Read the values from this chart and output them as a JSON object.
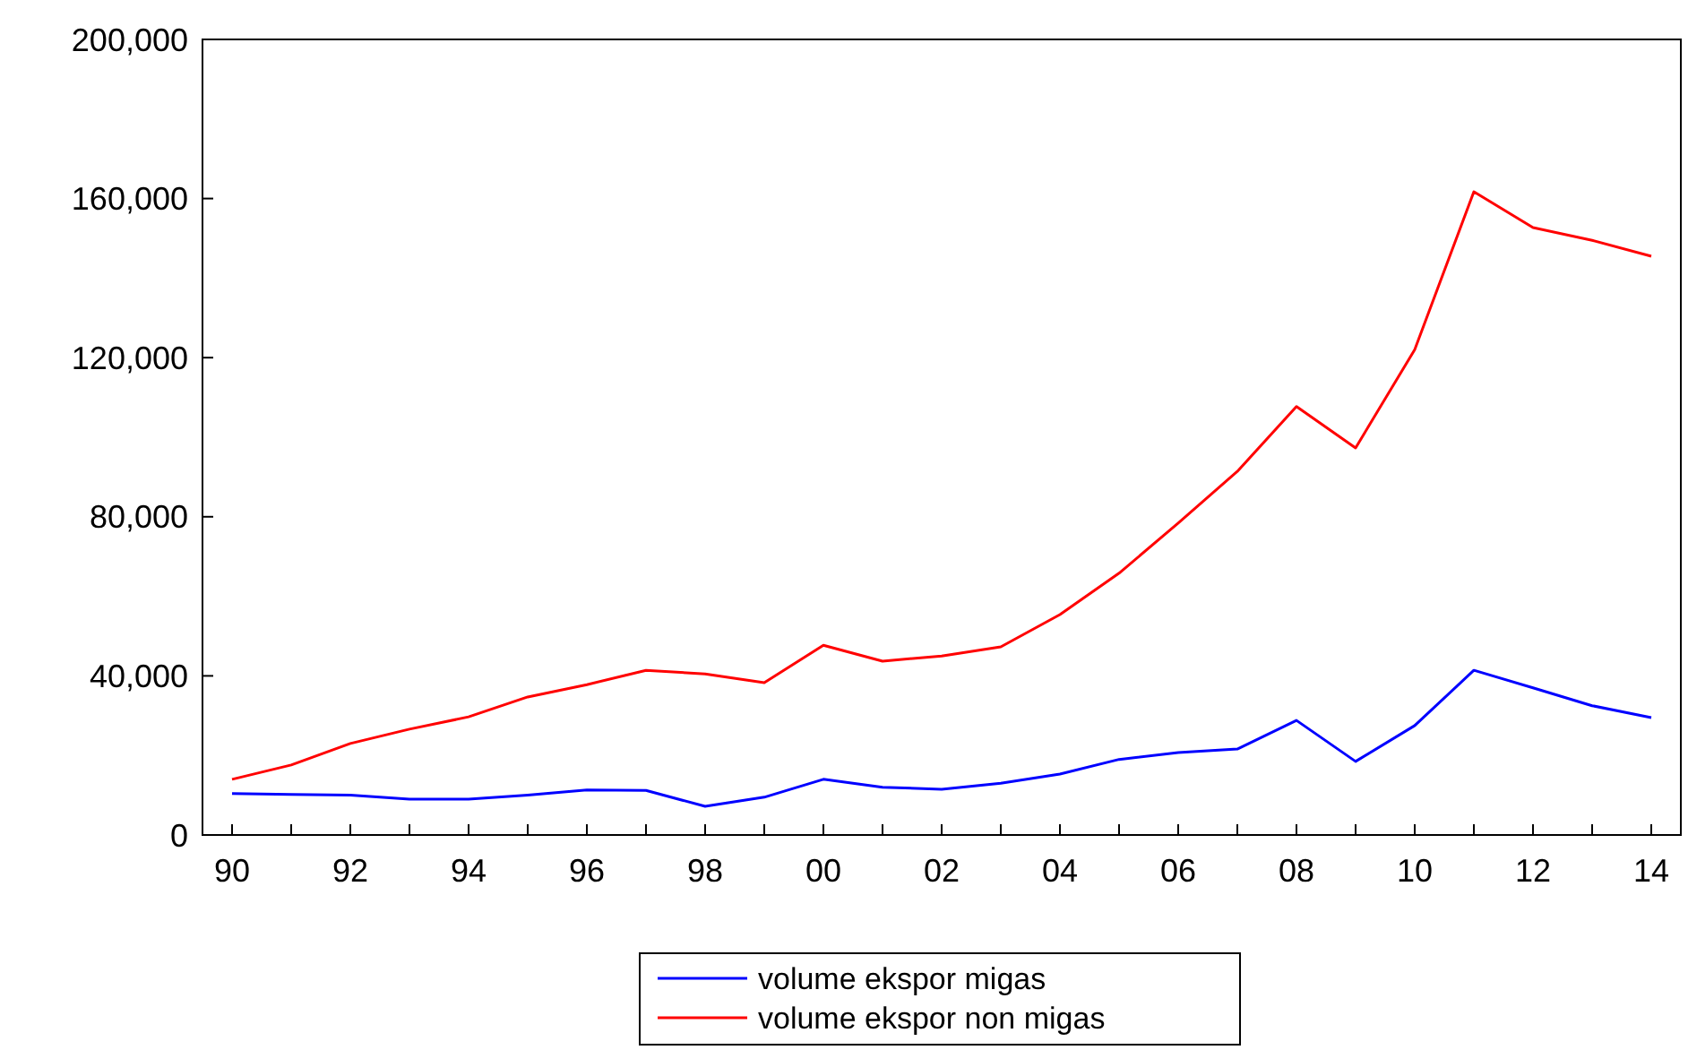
{
  "chart_data": {
    "type": "line",
    "x": [
      1990,
      1991,
      1992,
      1993,
      1994,
      1995,
      1996,
      1997,
      1998,
      1999,
      2000,
      2001,
      2002,
      2003,
      2004,
      2005,
      2006,
      2007,
      2008,
      2009,
      2010,
      2011,
      2012,
      2013,
      2014
    ],
    "series": [
      {
        "name": "volume ekspor migas",
        "color": "#0000ff",
        "values": [
          10400,
          10200,
          10000,
          9000,
          9000,
          10000,
          11300,
          11200,
          7200,
          9500,
          14000,
          12000,
          11500,
          13000,
          15300,
          19000,
          20700,
          21600,
          28800,
          18500,
          27500,
          41400,
          37000,
          32500,
          29500
        ]
      },
      {
        "name": "volume ekspor non migas",
        "color": "#ff0000",
        "values": [
          14000,
          17600,
          23000,
          26600,
          29700,
          34700,
          37800,
          41400,
          40500,
          38300,
          47700,
          43700,
          45000,
          47300,
          55400,
          65800,
          78400,
          91400,
          107700,
          97300,
          122000,
          161700,
          152700,
          149500,
          145500
        ]
      }
    ],
    "xlim": [
      1989.5,
      2014.5
    ],
    "xticks": [
      {
        "value": 1990,
        "label": "90"
      },
      {
        "value": 1991,
        "label": null
      },
      {
        "value": 1992,
        "label": "92"
      },
      {
        "value": 1993,
        "label": null
      },
      {
        "value": 1994,
        "label": "94"
      },
      {
        "value": 1995,
        "label": null
      },
      {
        "value": 1996,
        "label": "96"
      },
      {
        "value": 1997,
        "label": null
      },
      {
        "value": 1998,
        "label": "98"
      },
      {
        "value": 1999,
        "label": null
      },
      {
        "value": 2000,
        "label": "00"
      },
      {
        "value": 2001,
        "label": null
      },
      {
        "value": 2002,
        "label": "02"
      },
      {
        "value": 2003,
        "label": null
      },
      {
        "value": 2004,
        "label": "04"
      },
      {
        "value": 2005,
        "label": null
      },
      {
        "value": 2006,
        "label": "06"
      },
      {
        "value": 2007,
        "label": null
      },
      {
        "value": 2008,
        "label": "08"
      },
      {
        "value": 2009,
        "label": null
      },
      {
        "value": 2010,
        "label": "10"
      },
      {
        "value": 2011,
        "label": null
      },
      {
        "value": 2012,
        "label": "12"
      },
      {
        "value": 2013,
        "label": null
      },
      {
        "value": 2014,
        "label": "14"
      }
    ],
    "ylim": [
      0,
      200000
    ],
    "yticks": [
      0,
      {
        "value": 40000,
        "label": "40,000"
      },
      {
        "value": 80000,
        "label": "80,000"
      },
      {
        "value": 120000,
        "label": "120,000"
      },
      {
        "value": 160000,
        "label": "160,000"
      },
      {
        "value": 200000,
        "label": "200,000"
      }
    ],
    "grid": false,
    "legend": "bottom",
    "line_style": "solid",
    "marker": "none"
  }
}
